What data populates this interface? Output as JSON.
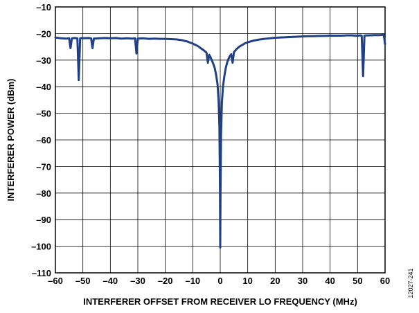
{
  "chart_data": {
    "type": "line",
    "title": "",
    "xlabel": "INTERFERER OFFSET FROM RECEIVER LO FREQUENCY (MHz)",
    "ylabel": "INTERFERER POWER (dBm)",
    "xlim": [
      -60,
      60
    ],
    "ylim": [
      -110,
      -10
    ],
    "xticks": [
      -60,
      -50,
      -40,
      -30,
      -20,
      -10,
      0,
      10,
      20,
      30,
      40,
      50,
      60
    ],
    "yticks": [
      -10,
      -20,
      -30,
      -40,
      -50,
      -60,
      -70,
      -80,
      -90,
      -100,
      -110
    ],
    "xtick_labels": [
      "–60",
      "–50",
      "–40",
      "–30",
      "–20",
      "–10",
      "0",
      "10",
      "20",
      "30",
      "40",
      "50",
      "60"
    ],
    "ytick_labels": [
      "–10",
      "–20",
      "–30",
      "–40",
      "–50",
      "–60",
      "–70",
      "–80",
      "–90",
      "–100",
      "–110"
    ],
    "grid": true,
    "line_color": "#1f3f86",
    "series": [
      {
        "name": "",
        "x": [
          -60,
          -58,
          -56,
          -55,
          -54.5,
          -54,
          -53,
          -52,
          -51.5,
          -51,
          -50.5,
          -50,
          -48,
          -47,
          -46.5,
          -46,
          -44,
          -42,
          -40,
          -38,
          -36,
          -34,
          -32,
          -31,
          -30.5,
          -30,
          -28,
          -26,
          -24,
          -22,
          -20,
          -18,
          -16,
          -14,
          -12,
          -10,
          -9,
          -8,
          -7,
          -6,
          -5,
          -4.5,
          -4,
          -3.5,
          -3,
          -2.5,
          -2,
          -1.5,
          -1,
          -0.6,
          -0.3,
          -0.1,
          0,
          0.1,
          0.3,
          0.6,
          1,
          1.5,
          2,
          2.5,
          3,
          3.5,
          4,
          4.5,
          5,
          6,
          7,
          8,
          9,
          10,
          12,
          14,
          16,
          18,
          20,
          22,
          24,
          26,
          28,
          30,
          32,
          34,
          36,
          38,
          40,
          42,
          44,
          46,
          48,
          50,
          51,
          51.5,
          52,
          52.5,
          53,
          54,
          56,
          58,
          59,
          59.5,
          60
        ],
        "y": [
          -21.5,
          -21.8,
          -21.9,
          -21.8,
          -25.5,
          -21.8,
          -21.7,
          -21.8,
          -37.5,
          -21.8,
          -21.7,
          -21.8,
          -21.7,
          -21.8,
          -25.5,
          -21.9,
          -21.8,
          -21.7,
          -21.8,
          -21.7,
          -21.9,
          -21.8,
          -21.9,
          -21.8,
          -27.5,
          -21.9,
          -21.8,
          -22.0,
          -21.9,
          -22.0,
          -22.0,
          -22.1,
          -22.2,
          -22.5,
          -23.0,
          -23.8,
          -24.3,
          -24.8,
          -25.6,
          -26.3,
          -27.2,
          -31.0,
          -28.0,
          -29.0,
          -30.2,
          -31.5,
          -33.0,
          -35.5,
          -39.0,
          -45.0,
          -55.0,
          -77.0,
          -100.5,
          -80.0,
          -58.0,
          -46.0,
          -40.0,
          -36.0,
          -33.0,
          -31.0,
          -29.5,
          -28.5,
          -27.8,
          -31.0,
          -27.0,
          -25.8,
          -24.9,
          -24.3,
          -23.7,
          -23.3,
          -22.7,
          -22.3,
          -22.0,
          -21.8,
          -21.6,
          -21.5,
          -21.4,
          -21.3,
          -21.2,
          -21.1,
          -21.0,
          -21.0,
          -20.9,
          -20.9,
          -20.8,
          -20.8,
          -20.8,
          -20.7,
          -20.7,
          -20.8,
          -20.7,
          -20.8,
          -36.0,
          -20.8,
          -20.7,
          -20.7,
          -20.6,
          -20.6,
          -20.5,
          -20.3,
          -24.0
        ]
      }
    ]
  },
  "figure_id": "12027-241"
}
